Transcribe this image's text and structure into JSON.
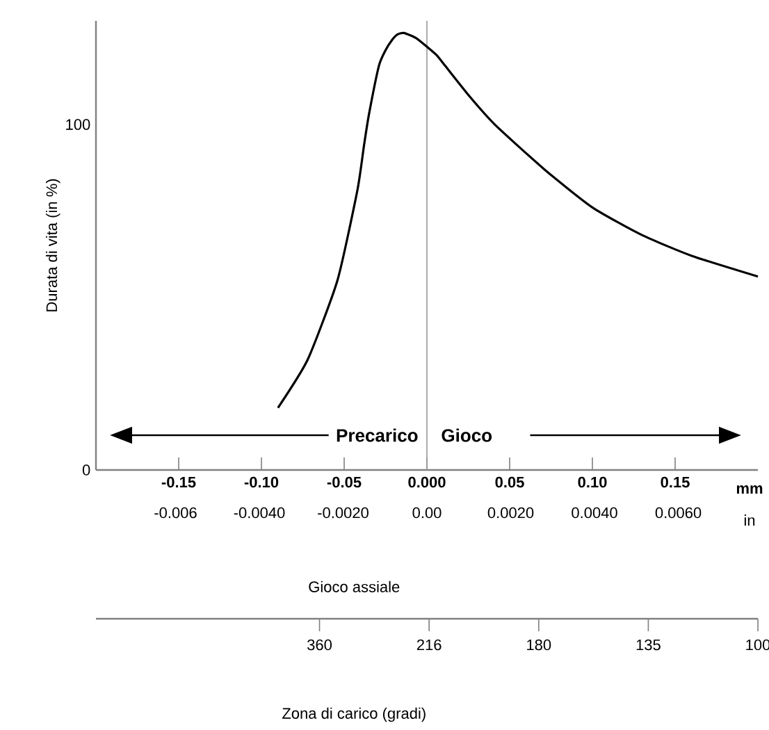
{
  "chart_data": [
    {
      "type": "line",
      "xlabel": "Gioco assiale",
      "ylabel": "Durata di vita (in %)",
      "x": [
        -0.09,
        -0.072,
        -0.054,
        -0.042,
        -0.038,
        -0.035,
        -0.029,
        -0.025,
        -0.021,
        -0.018,
        -0.014,
        -0.0065,
        0,
        0.006,
        0.011,
        0.026,
        0.041,
        0.071,
        0.1,
        0.13,
        0.16,
        0.2
      ],
      "series": [
        {
          "color": "#000000",
          "values": [
            18,
            32,
            55,
            81,
            94,
            103,
            117,
            121.5,
            124.5,
            126,
            126.5,
            125,
            122.5,
            120,
            117,
            108,
            100,
            87,
            76,
            68,
            62,
            56
          ]
        }
      ],
      "xlim": [
        -0.2,
        0.2
      ],
      "xticks": [
        -0.15,
        {
          "value": -0.1,
          "label": "-0.10"
        },
        -0.05,
        {
          "value": 0,
          "label": "0.000"
        },
        0.05,
        {
          "value": 0.1,
          "label": "0.10"
        },
        0.15
      ],
      "x2lim": [
        -0.0079,
        0.0079
      ],
      "x2ticks": [
        -0.006,
        {
          "value": -0.004,
          "label": "-0.0040"
        },
        {
          "value": -0.002,
          "label": "-0.0020"
        },
        {
          "value": 0,
          "label": "0.00"
        },
        {
          "value": 0.002,
          "label": "0.0020"
        },
        {
          "value": 0.004,
          "label": "0.0040"
        },
        {
          "value": 0.006,
          "label": "0.0060"
        }
      ],
      "ylim": [
        0,
        130
      ],
      "yticks": [
        0,
        100
      ],
      "ref_lines": [
        {
          "axis": "x",
          "value": 0,
          "color": "#999999"
        }
      ],
      "annotations": [
        "Precarico",
        "Gioco",
        "mm",
        "in"
      ],
      "marker": "none",
      "line_style": "solid"
    },
    {
      "type": "other",
      "xlabel": "Zona di carico (gradi)",
      "categories": [
        "360",
        "216",
        "180",
        "135",
        "100"
      ]
    }
  ]
}
